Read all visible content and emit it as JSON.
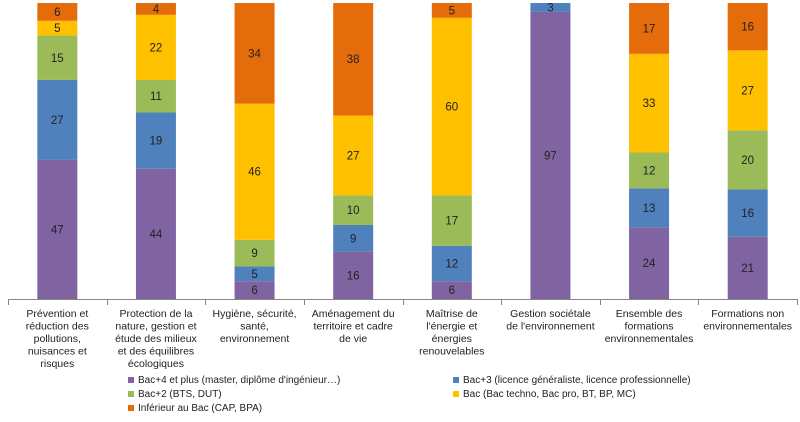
{
  "chart_data": {
    "type": "bar",
    "stacked": true,
    "normalized_percent": true,
    "categories": [
      [
        "Prévention et",
        "réduction des",
        "pollutions,",
        "nuisances et",
        "risques"
      ],
      [
        "Protection de la",
        "nature, gestion et",
        "étude des milieux",
        "et des équilibres",
        "écologiques"
      ],
      [
        "Hygiène, sécurité,",
        "santé,",
        "environnement"
      ],
      [
        "Aménagement du",
        "territoire et cadre",
        "de vie"
      ],
      [
        "Maîtrise de",
        "l'énergie et",
        "énergies",
        "renouvelables"
      ],
      [
        "Gestion sociétale",
        "de l'environnement"
      ],
      [
        "Ensemble des",
        "formations",
        "environnementales"
      ],
      [
        "Formations non",
        "environnementales"
      ]
    ],
    "series": [
      {
        "name": "Bac+4 et plus (master, diplôme d'ingénieur…)",
        "color": "#8064a2",
        "values": [
          47,
          44,
          6,
          16,
          6,
          97,
          24,
          21
        ]
      },
      {
        "name": "Bac+3 (licence généraliste, licence professionnelle)",
        "color": "#4f81bd",
        "values": [
          27,
          19,
          5,
          9,
          12,
          3,
          13,
          16
        ]
      },
      {
        "name": "Bac+2 (BTS, DUT)",
        "color": "#9bbb59",
        "values": [
          15,
          11,
          9,
          10,
          17,
          0,
          12,
          20
        ]
      },
      {
        "name": "Bac (Bac techno, Bac pro, BT, BP, MC)",
        "color": "#ffc000",
        "values": [
          5,
          22,
          46,
          27,
          60,
          0,
          33,
          27
        ]
      },
      {
        "name": "Inférieur au Bac (CAP, BPA)",
        "color": "#e46c0a",
        "values": [
          6,
          4,
          34,
          38,
          5,
          0,
          17,
          16
        ]
      }
    ],
    "ylim": [
      0,
      100
    ],
    "grid": false,
    "legend_position": "bottom"
  }
}
